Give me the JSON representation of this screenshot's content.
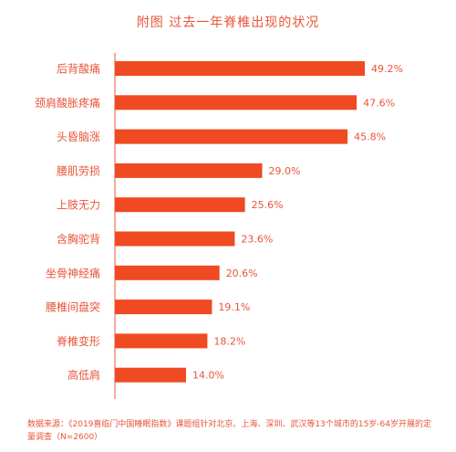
{
  "chart_data": {
    "type": "bar",
    "orientation": "horizontal",
    "title": "附图 过去一年脊椎出现的状况",
    "categories": [
      "后背酸痛",
      "颈肩酸胀疼痛",
      "头昏脑涨",
      "腰肌劳损",
      "上肢无力",
      "含胸驼背",
      "坐骨神经痛",
      "腰椎间盘突",
      "脊椎变形",
      "高低肩"
    ],
    "values": [
      49.2,
      47.6,
      45.8,
      29.0,
      25.6,
      23.6,
      20.6,
      19.1,
      18.2,
      14.0
    ],
    "value_labels": [
      "49.2%",
      "47.6%",
      "45.8%",
      "29.0%",
      "25.6%",
      "23.6%",
      "20.6%",
      "19.1%",
      "18.2%",
      "14.0%"
    ],
    "unit": "%",
    "xlim": [
      0,
      60
    ],
    "grid": false,
    "bar_color": "#f04a22",
    "text_color": "#e8553a"
  },
  "source_note": "数据来源：《2019喜临门中国睡眠指数》课题组针对北京、上海、深圳、武汉等13个城市的15岁-64岁开展的定量调查（N=2600）"
}
